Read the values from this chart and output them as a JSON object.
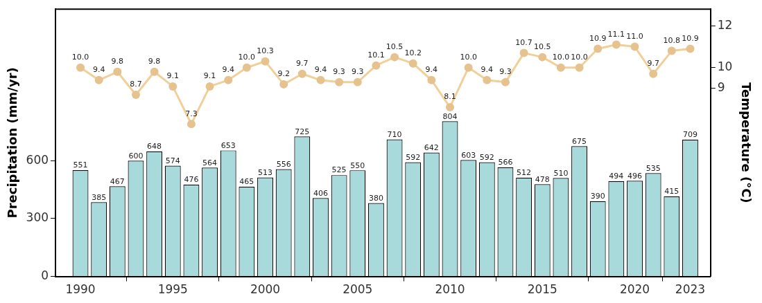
{
  "chart_data": {
    "type": "bar",
    "x": [
      1990,
      1991,
      1992,
      1993,
      1994,
      1995,
      1996,
      1997,
      1998,
      1999,
      2000,
      2001,
      2002,
      2003,
      2004,
      2005,
      2006,
      2007,
      2008,
      2009,
      2010,
      2011,
      2012,
      2013,
      2014,
      2015,
      2016,
      2017,
      2018,
      2019,
      2020,
      2021,
      2022,
      2023
    ],
    "xlim": [
      1988.65,
      2024.1
    ],
    "xticks": [
      1990,
      1995,
      2000,
      2005,
      2010,
      2015,
      2020,
      2023
    ],
    "ylabel": "Precipitation (mm/yr)",
    "y2label": "Temperature (°C)",
    "ylim": [
      0,
      1385
    ],
    "yticks": [
      0,
      300,
      600
    ],
    "y2lim": [
      0,
      12.8
    ],
    "y2ticks": [
      9,
      10,
      12
    ],
    "series": [
      {
        "color": "#a8dadc",
        "values": [
          551,
          385,
          467,
          600,
          648,
          574,
          476,
          564,
          653,
          465,
          513,
          556,
          725,
          406,
          525,
          550,
          380,
          710,
          592,
          642,
          804,
          603,
          592,
          566,
          512,
          478,
          510,
          675,
          390,
          494,
          496,
          535,
          415,
          709
        ]
      },
      {
        "type": "line",
        "axis": "y2",
        "color": "#f0cf98",
        "value_labels": [
          "10.0",
          "9.4",
          "9.8",
          "8.7",
          "9.8",
          "9.1",
          "7.3",
          "9.1",
          "9.4",
          "10.0",
          "10.3",
          "9.2",
          "9.7",
          "9.4",
          "9.3",
          "9.3",
          "10.1",
          "10.5",
          "10.2",
          "9.4",
          "8.1",
          "10.0",
          "9.4",
          "9.3",
          "10.7",
          "10.5",
          "10.0",
          "10.0",
          "10.9",
          "11.1",
          "11.0",
          "9.7",
          "10.8",
          "10.9"
        ],
        "values": [
          10.0,
          9.4,
          9.8,
          8.7,
          9.8,
          9.1,
          7.3,
          9.1,
          9.4,
          10.0,
          10.3,
          9.2,
          9.7,
          9.4,
          9.3,
          9.3,
          10.1,
          10.5,
          10.2,
          9.4,
          8.1,
          10.0,
          9.4,
          9.3,
          10.7,
          10.5,
          10.0,
          10.0,
          10.9,
          11.1,
          11.0,
          9.7,
          10.8,
          10.9
        ]
      }
    ],
    "marker": "circle",
    "data_labels": true,
    "grid": false,
    "legend": false
  }
}
